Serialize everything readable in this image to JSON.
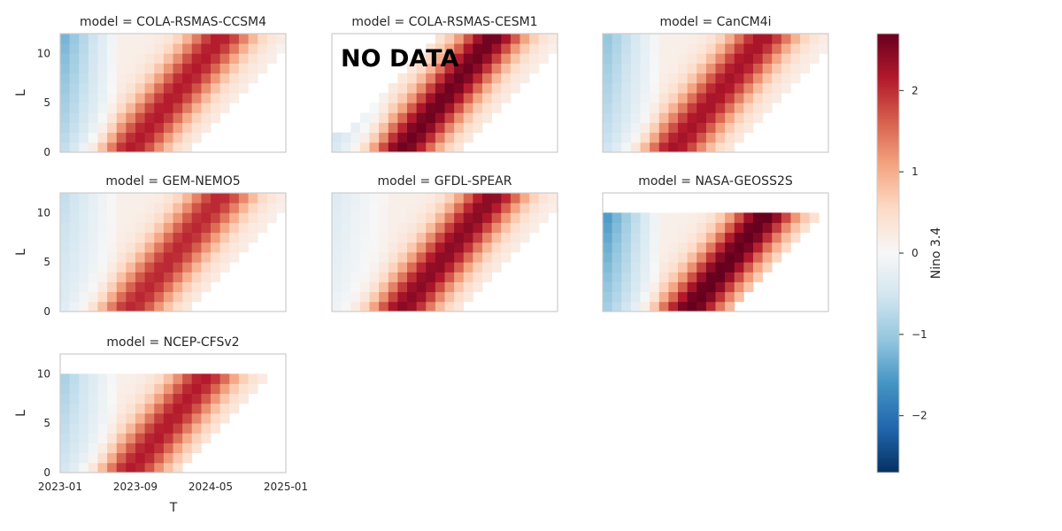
{
  "chart_data": {
    "type": "heatmap",
    "facet_titles": [
      "model = COLA-RSMAS-CCSM4",
      "model = COLA-RSMAS-CESM1",
      "model = CanCM4i",
      "model = GEM-NEMO5",
      "model = GFDL-SPEAR",
      "model = NASA-GEOSS2S",
      "model = NCEP-CFSv2"
    ],
    "xlabel": "T",
    "ylabel": "L",
    "x_ticks": [
      "2023-01",
      "2023-09",
      "2024-05",
      "2025-01"
    ],
    "y_ticks": [
      "0",
      "5",
      "10"
    ],
    "ylim": [
      0,
      12
    ],
    "colorbar": {
      "label": "Nino 3.4",
      "vmin": -2.7,
      "vmax": 2.7,
      "ticks": [
        "2",
        "1",
        "0",
        "−1",
        "−2"
      ],
      "tick_values": [
        2,
        1,
        0,
        -1,
        -2
      ],
      "colormap": [
        "#053061",
        "#2166ac",
        "#4393c3",
        "#92c5de",
        "#d1e5f0",
        "#f7f7f7",
        "#fddbc7",
        "#f4a582",
        "#d6604d",
        "#b2182b",
        "#67001f"
      ]
    },
    "annotation": "NO DATA",
    "annotation_panel": "model = COLA-RSMAS-CESM1",
    "grid": false,
    "panel_border_color": "#cccccc",
    "series": [
      {
        "name": "COLA-RSMAS-CCSM4",
        "t_start": 2023.0,
        "cells_wide": 26,
        "rows": 12,
        "diag_shift": 0,
        "pos_center": 2023.95,
        "pos_peak": 2.0,
        "neg_level": -1.4,
        "late_neg": -2.5,
        "missing_upper_before": 0
      },
      {
        "name": "COLA-RSMAS-CESM1",
        "t_start": 2023.0,
        "cells_wide": 26,
        "rows": 12,
        "diag_shift": 0,
        "pos_center": 2023.95,
        "pos_peak": 2.5,
        "neg_level": -1.0,
        "late_neg": -1.3,
        "missing_upper_before": 13
      },
      {
        "name": "CanCM4i",
        "t_start": 2023.0,
        "cells_wide": 26,
        "rows": 12,
        "diag_shift": 0,
        "pos_center": 2023.95,
        "pos_peak": 2.1,
        "neg_level": -1.2,
        "late_neg": -1.0,
        "missing_upper_before": 0
      },
      {
        "name": "GEM-NEMO5",
        "t_start": 2023.0,
        "cells_wide": 26,
        "rows": 12,
        "diag_shift": 0,
        "pos_center": 2023.95,
        "pos_peak": 1.9,
        "neg_level": -0.8,
        "late_neg": -0.8,
        "missing_upper_before": 0
      },
      {
        "name": "GFDL-SPEAR",
        "t_start": 2023.0,
        "cells_wide": 26,
        "rows": 12,
        "diag_shift": 0,
        "pos_center": 2023.95,
        "pos_peak": 2.3,
        "neg_level": -0.5,
        "late_neg": -0.4,
        "missing_upper_before": 0
      },
      {
        "name": "NASA-GEOSS2S",
        "t_start": 2023.0,
        "cells_wide": 23,
        "rows": 10,
        "diag_shift": 2,
        "pos_center": 2024.1,
        "pos_peak": 2.6,
        "neg_level": -1.8,
        "late_neg": -1.0,
        "missing_upper_before": 0
      },
      {
        "name": "NCEP-CFSv2",
        "t_start": 2023.0,
        "cells_wide": 24,
        "rows": 10,
        "diag_shift": 1,
        "pos_center": 2023.95,
        "pos_peak": 2.0,
        "neg_level": -1.1,
        "late_neg": -1.0,
        "missing_upper_before": 0
      }
    ]
  }
}
